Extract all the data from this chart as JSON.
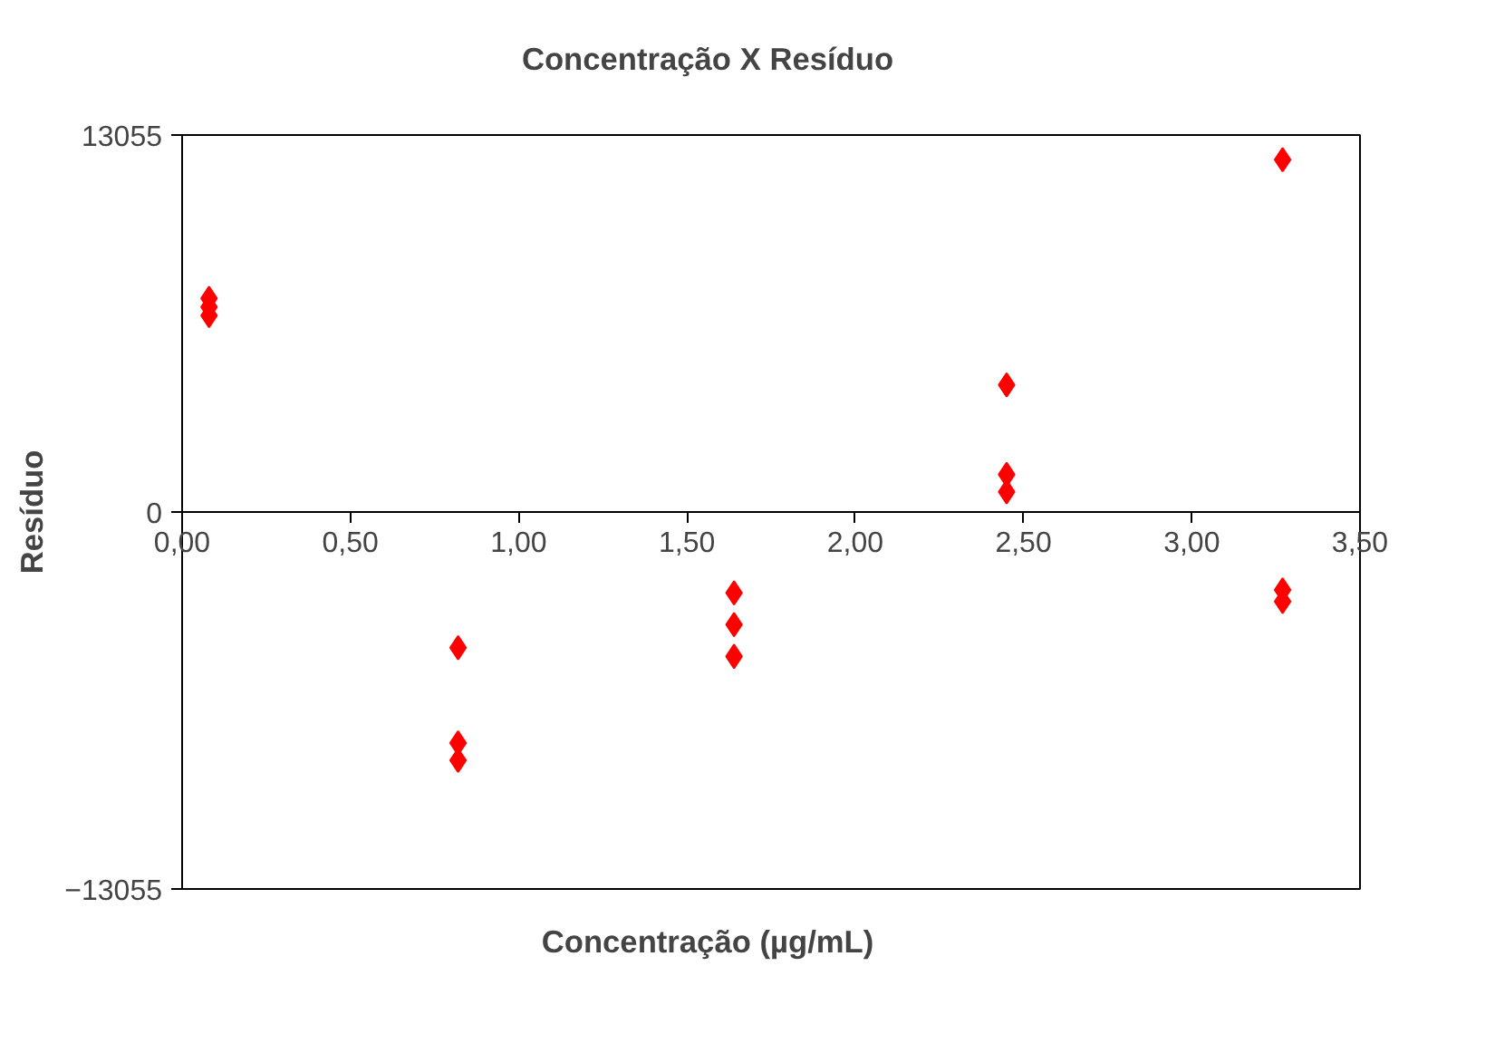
{
  "chart_data": {
    "type": "scatter",
    "title": "Concentração X Resíduo",
    "xlabel": "Concentração (µg/mL)",
    "ylabel": "Resíduo",
    "x": [
      0.08,
      0.08,
      0.08,
      0.82,
      0.82,
      0.82,
      1.64,
      1.64,
      1.64,
      2.45,
      2.45,
      2.45,
      3.27,
      3.27,
      3.27
    ],
    "series": [
      {
        "color": "#ff0000",
        "values": [
          7400,
          7100,
          6800,
          -4700,
          -8000,
          -8600,
          -2800,
          -3900,
          -5000,
          4400,
          1300,
          700,
          12200,
          -2700,
          -3100
        ]
      }
    ],
    "xlim": [
      0,
      3.5
    ],
    "xticks": [
      {
        "value": 0,
        "label": "0,00"
      },
      {
        "value": 0.5,
        "label": "0,50"
      },
      {
        "value": 1,
        "label": "1,00"
      },
      {
        "value": 1.5,
        "label": "1,50"
      },
      {
        "value": 2,
        "label": "2,00"
      },
      {
        "value": 2.5,
        "label": "2,50"
      },
      {
        "value": 3,
        "label": "3,00"
      },
      {
        "value": 3.5,
        "label": "3,50"
      }
    ],
    "ylim": [
      -13055,
      13055
    ],
    "yticks": [
      -13055,
      0,
      13055
    ],
    "grid": false,
    "marker": "diamond"
  }
}
